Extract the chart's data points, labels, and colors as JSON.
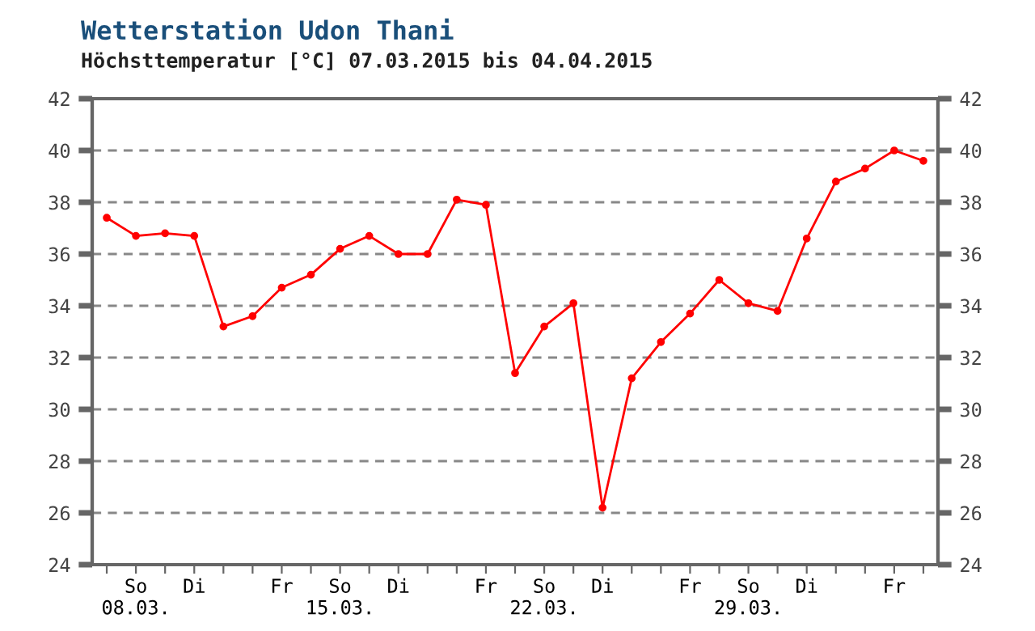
{
  "chart_data": {
    "type": "line",
    "title": "Wetterstation Udon Thani",
    "subtitle": "Höchsttemperatur [°C] 07.03.2015 bis 04.04.2015",
    "categories": [
      null,
      "So\n08.03.",
      null,
      "Di",
      null,
      null,
      "Fr",
      null,
      "So\n15.03.",
      null,
      "Di",
      null,
      null,
      "Fr",
      null,
      "So\n22.03.",
      null,
      "Di",
      null,
      null,
      "Fr",
      null,
      "So\n29.03.",
      null,
      "Di",
      null,
      null,
      "Fr",
      null
    ],
    "series": [
      {
        "color": "#ff0000",
        "values": [
          37.4,
          36.7,
          36.8,
          36.7,
          33.2,
          33.6,
          34.7,
          35.2,
          36.2,
          36.7,
          36.0,
          36.0,
          38.1,
          37.9,
          31.4,
          33.2,
          34.1,
          26.2,
          31.2,
          32.6,
          33.7,
          35.0,
          34.1,
          33.8,
          36.6,
          38.8,
          39.3,
          40.0,
          39.6
        ]
      }
    ],
    "ylim": [
      24,
      42
    ],
    "yticks": [
      24,
      26,
      28,
      30,
      32,
      34,
      36,
      38,
      40,
      42
    ],
    "y2lim": [
      24,
      42
    ],
    "y2ticks": [
      24,
      26,
      28,
      30,
      32,
      34,
      36,
      38,
      40,
      42
    ],
    "grid": "y",
    "marker": "circle",
    "line_style": "solid",
    "legend": false
  }
}
